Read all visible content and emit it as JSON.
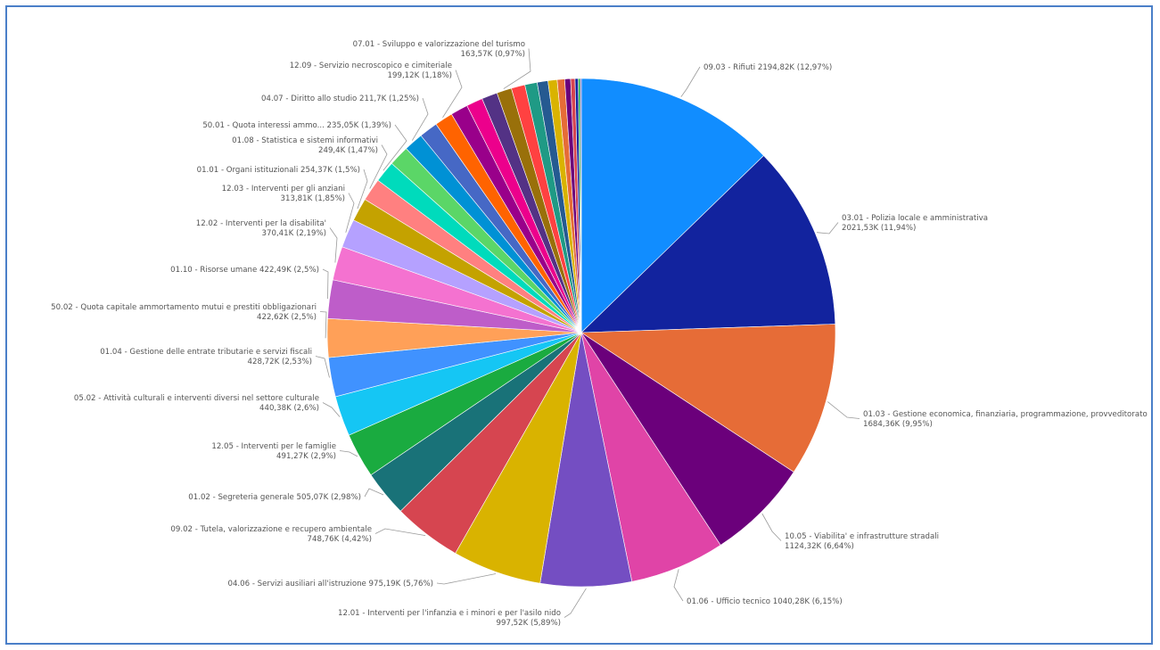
{
  "chart_data": {
    "type": "pie",
    "title": "",
    "colors_note": "",
    "slices": [
      {
        "label": "09.03 - Rifiuti",
        "value_text": "2194,82K",
        "pct_text": "12,97%",
        "value": 2194.82,
        "color": "#118DFF"
      },
      {
        "label": "03.01 - Polizia locale e amministrativa",
        "value_text": "2021,53K",
        "pct_text": "11,94%",
        "value": 2021.53,
        "color": "#12239E"
      },
      {
        "label": "01.03 - Gestione economica, finanziaria, programmazione, provveditorato",
        "value_text": "1684,36K",
        "pct_text": "9,95%",
        "value": 1684.36,
        "color": "#E66C37"
      },
      {
        "label": "10.05 - Viabilita' e infrastrutture stradali",
        "value_text": "1124,32K",
        "pct_text": "6,64%",
        "value": 1124.32,
        "color": "#6B007B"
      },
      {
        "label": "01.06 - Ufficio tecnico",
        "value_text": "1040,28K",
        "pct_text": "6,15%",
        "value": 1040.28,
        "color": "#E044A7"
      },
      {
        "label": "12.01 - Interventi per l'infanzia e i minori e per l'asilo nido",
        "value_text": "997,52K",
        "pct_text": "5,89%",
        "value": 997.52,
        "color": "#744EC2"
      },
      {
        "label": "04.06 - Servizi ausiliari all'istruzione",
        "value_text": "975,19K",
        "pct_text": "5,76%",
        "value": 975.19,
        "color": "#D9B300"
      },
      {
        "label": "09.02 - Tutela, valorizzazione e recupero ambientale",
        "value_text": "748,76K",
        "pct_text": "4,42%",
        "value": 748.76,
        "color": "#D64550"
      },
      {
        "label": "01.02 - Segreteria generale",
        "value_text": "505,07K",
        "pct_text": "2,98%",
        "value": 505.07,
        "color": "#197278"
      },
      {
        "label": "12.05 - Interventi per le famiglie",
        "value_text": "491,27K",
        "pct_text": "2,9%",
        "value": 491.27,
        "color": "#1AAB40"
      },
      {
        "label": "05.02 - Attività culturali e interventi diversi nel settore culturale",
        "value_text": "440,38K",
        "pct_text": "2,6%",
        "value": 440.38,
        "color": "#15C6F4"
      },
      {
        "label": "01.04 - Gestione delle entrate tributarie e servizi fiscali",
        "value_text": "428,72K",
        "pct_text": "2,53%",
        "value": 428.72,
        "color": "#4092FF"
      },
      {
        "label": "50.02 - Quota capitale ammortamento mutui e prestiti obbligazionari",
        "value_text": "422,62K",
        "pct_text": "2,5%",
        "value": 422.62,
        "color": "#FFA058"
      },
      {
        "label": "01.10 - Risorse umane",
        "value_text": "422,49K",
        "pct_text": "2,5%",
        "value": 422.49,
        "color": "#BE5DC9"
      },
      {
        "label": "12.02 - Interventi per la disabilita'",
        "value_text": "370,41K",
        "pct_text": "2,19%",
        "value": 370.41,
        "color": "#F472D0"
      },
      {
        "label": "12.03 - Interventi per gli anziani",
        "value_text": "313,81K",
        "pct_text": "1,85%",
        "value": 313.81,
        "color": "#B5A1FF"
      },
      {
        "label": "01.01 - Organi istituzionali",
        "value_text": "254,37K",
        "pct_text": "1,5%",
        "value": 254.37,
        "color": "#C4A200"
      },
      {
        "label": "01.08 - Statistica e sistemi informativi",
        "value_text": "249,4K",
        "pct_text": "1,47%",
        "value": 249.4,
        "color": "#FF8080"
      },
      {
        "label": "50.01 - Quota interessi ammo...",
        "value_text": "235,05K",
        "pct_text": "1,39%",
        "value": 235.05,
        "color": "#00DBBC"
      },
      {
        "label": "",
        "value_text": "",
        "pct_text": "",
        "value": 224.0,
        "color": "#5BD667"
      },
      {
        "label": "04.07 - Diritto allo studio",
        "value_text": "211,7K",
        "pct_text": "1,25%",
        "value": 211.7,
        "color": "#0091D5"
      },
      {
        "label": "",
        "value_text": "",
        "pct_text": "",
        "value": 205.0,
        "color": "#4668C5"
      },
      {
        "label": "12.09 - Servizio necroscopico e cimiteriale",
        "value_text": "199,12K",
        "pct_text": "1,18%",
        "value": 199.12,
        "color": "#FF6300"
      },
      {
        "label": "",
        "value_text": "",
        "pct_text": "",
        "value": 190.0,
        "color": "#99008A"
      },
      {
        "label": "",
        "value_text": "",
        "pct_text": "",
        "value": 180.0,
        "color": "#EC008C"
      },
      {
        "label": "",
        "value_text": "",
        "pct_text": "",
        "value": 172.0,
        "color": "#533285"
      },
      {
        "label": "07.01 - Sviluppo e valorizzazione del turismo",
        "value_text": "163,57K",
        "pct_text": "0,97%",
        "value": 163.57,
        "color": "#99700A"
      },
      {
        "label": "",
        "value_text": "",
        "pct_text": "",
        "value": 150.0,
        "color": "#FF4141"
      },
      {
        "label": "",
        "value_text": "",
        "pct_text": "",
        "value": 135.0,
        "color": "#1F9A85"
      },
      {
        "label": "",
        "value_text": "",
        "pct_text": "",
        "value": 118.0,
        "color": "#255A91"
      },
      {
        "label": "",
        "value_text": "",
        "pct_text": "",
        "value": 100.0,
        "color": "#D9B300"
      },
      {
        "label": "",
        "value_text": "",
        "pct_text": "",
        "value": 82.0,
        "color": "#E66C37"
      },
      {
        "label": "",
        "value_text": "",
        "pct_text": "",
        "value": 64.0,
        "color": "#6B007B"
      },
      {
        "label": "",
        "value_text": "",
        "pct_text": "",
        "value": 48.0,
        "color": "#D64550"
      },
      {
        "label": "",
        "value_text": "",
        "pct_text": "",
        "value": 34.0,
        "color": "#12239E"
      },
      {
        "label": "",
        "value_text": "",
        "pct_text": "",
        "value": 22.0,
        "color": "#1AAB40"
      },
      {
        "label": "",
        "value_text": "",
        "pct_text": "",
        "value": 12.0,
        "color": "#744EC2"
      }
    ],
    "labels": [
      {
        "slice": 0,
        "lines": [
          "09.03 - Rifiuti 2194,82K (12,97%)"
        ],
        "side": "right"
      },
      {
        "slice": 1,
        "lines": [
          "03.01 - Polizia locale e amministrativa",
          "2021,53K (11,94%)"
        ],
        "side": "right"
      },
      {
        "slice": 2,
        "lines": [
          "01.03 - Gestione economica, finanziaria, programmazione, provveditorato",
          "1684,36K (9,95%)"
        ],
        "side": "right"
      },
      {
        "slice": 3,
        "lines": [
          "10.05 - Viabilita' e infrastrutture stradali",
          "1124,32K (6,64%)"
        ],
        "side": "right"
      },
      {
        "slice": 4,
        "lines": [
          "01.06 - Ufficio tecnico 1040,28K (6,15%)"
        ],
        "side": "right"
      },
      {
        "slice": 5,
        "lines": [
          "12.01 - Interventi per l'infanzia e i minori e per l'asilo nido",
          "997,52K (5,89%)"
        ],
        "side": "left"
      },
      {
        "slice": 6,
        "lines": [
          "04.06 - Servizi ausiliari all'istruzione 975,19K (5,76%)"
        ],
        "side": "left"
      },
      {
        "slice": 7,
        "lines": [
          "09.02 - Tutela, valorizzazione e recupero ambientale",
          "748,76K (4,42%)"
        ],
        "side": "left"
      },
      {
        "slice": 8,
        "lines": [
          "01.02 - Segreteria generale 505,07K (2,98%)"
        ],
        "side": "left"
      },
      {
        "slice": 9,
        "lines": [
          "12.05 - Interventi per le famiglie",
          "491,27K (2,9%)"
        ],
        "side": "left"
      },
      {
        "slice": 10,
        "lines": [
          "05.02 - Attività culturali e interventi diversi nel settore culturale",
          "440,38K (2,6%)"
        ],
        "side": "left"
      },
      {
        "slice": 11,
        "lines": [
          "01.04 - Gestione delle entrate tributarie e servizi fiscali",
          "428,72K (2,53%)"
        ],
        "side": "left"
      },
      {
        "slice": 12,
        "lines": [
          "50.02 - Quota capitale ammortamento mutui e prestiti obbligazionari",
          "422,62K (2,5%)"
        ],
        "side": "left"
      },
      {
        "slice": 13,
        "lines": [
          "01.10 - Risorse umane 422,49K (2,5%)"
        ],
        "side": "left"
      },
      {
        "slice": 14,
        "lines": [
          "12.02 - Interventi per la disabilita'",
          "370,41K (2,19%)"
        ],
        "side": "left"
      },
      {
        "slice": 15,
        "lines": [
          "12.03 - Interventi per gli anziani",
          "313,81K (1,85%)"
        ],
        "side": "left"
      },
      {
        "slice": 16,
        "lines": [
          "01.01 - Organi istituzionali 254,37K (1,5%)"
        ],
        "side": "left"
      },
      {
        "slice": 17,
        "lines": [
          "01.08 - Statistica e sistemi informativi",
          "249,4K (1,47%)"
        ],
        "side": "left"
      },
      {
        "slice": 18,
        "lines": [
          "50.01 - Quota interessi ammo... 235,05K (1,39%)"
        ],
        "side": "left"
      },
      {
        "slice": 20,
        "lines": [
          "04.07 - Diritto allo studio 211,7K (1,25%)"
        ],
        "side": "left"
      },
      {
        "slice": 22,
        "lines": [
          "12.09 - Servizio necroscopico e cimiteriale",
          "199,12K (1,18%)"
        ],
        "side": "left"
      },
      {
        "slice": 26,
        "lines": [
          "07.01 - Sviluppo e valorizzazione del turismo",
          "163,57K (0,97%)"
        ],
        "side": "left"
      }
    ]
  }
}
